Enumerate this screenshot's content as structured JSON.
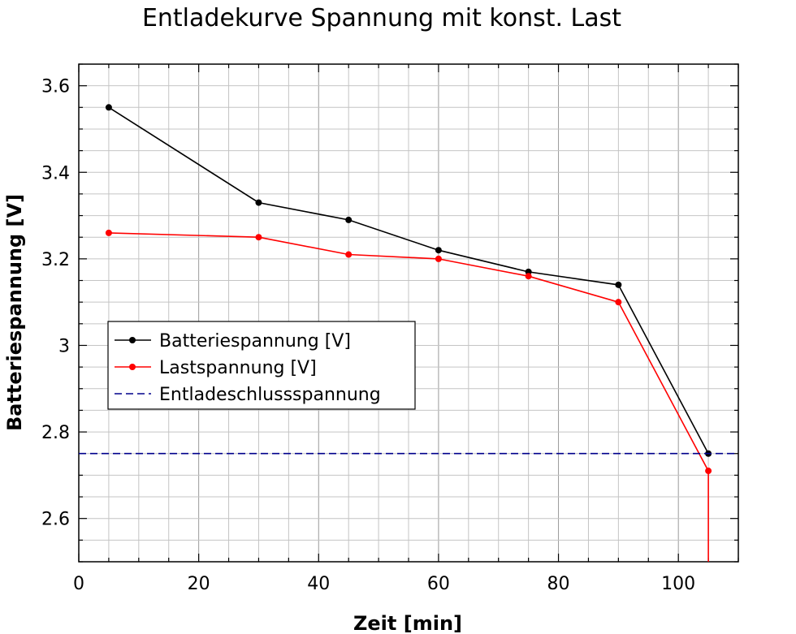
{
  "chart_data": {
    "type": "line",
    "title": "Entladekurve Spannung mit konst. Last",
    "xlabel": "Zeit [min]",
    "ylabel": "Batteriespannung [V]",
    "xlim": [
      0,
      110
    ],
    "ylim": [
      2.5,
      3.65
    ],
    "xticks": [
      0,
      20,
      40,
      60,
      80,
      100
    ],
    "xtick_labels": [
      "0",
      "20",
      "40",
      "60",
      "80",
      "100"
    ],
    "yticks": [
      2.6,
      2.8,
      3.0,
      3.2,
      3.4,
      3.6
    ],
    "ytick_labels": [
      "2.6",
      "2.8",
      "3",
      "3.2",
      "3.4",
      "3.6"
    ],
    "grid": true,
    "legend_position": "center-left",
    "series": [
      {
        "name": "Batteriespannung [V]",
        "color": "#000000",
        "marker": true,
        "dashed": false,
        "points": [
          [
            5,
            3.55
          ],
          [
            30,
            3.33
          ],
          [
            45,
            3.29
          ],
          [
            60,
            3.22
          ],
          [
            75,
            3.17
          ],
          [
            90,
            3.14
          ],
          [
            105,
            2.75
          ]
        ]
      },
      {
        "name": "Lastspannung [V]",
        "color": "#ff0000",
        "marker": true,
        "dashed": false,
        "points": [
          [
            5,
            3.26
          ],
          [
            30,
            3.25
          ],
          [
            45,
            3.21
          ],
          [
            60,
            3.2
          ],
          [
            75,
            3.16
          ],
          [
            90,
            3.1
          ],
          [
            105,
            2.71
          ],
          [
            105,
            2.5
          ]
        ]
      },
      {
        "name": "Entladeschlussspannung",
        "color": "#00008b",
        "marker": false,
        "dashed": true,
        "points": [
          [
            0,
            2.75
          ],
          [
            110,
            2.75
          ]
        ]
      }
    ]
  }
}
